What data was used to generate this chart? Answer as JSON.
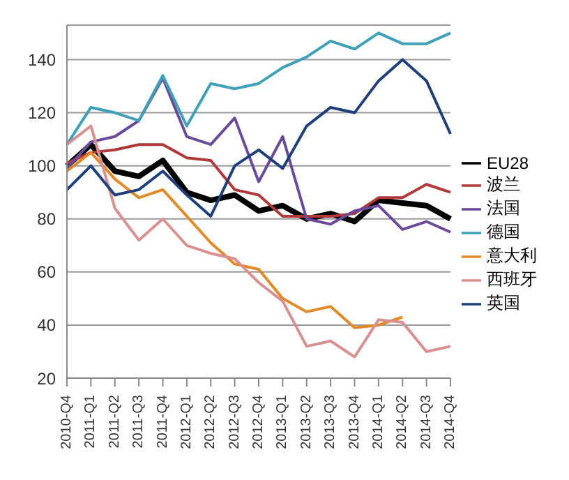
{
  "chart_data": {
    "type": "line",
    "categories": [
      "2010-Q4",
      "2011-Q1",
      "2011-Q2",
      "2011-Q3",
      "2011-Q4",
      "2012-Q1",
      "2012-Q2",
      "2012-Q3",
      "2012-Q4",
      "2013-Q1",
      "2013-Q2",
      "2013-Q3",
      "2013-Q4",
      "2014-Q1",
      "2014-Q2",
      "2014-Q3",
      "2014-Q4"
    ],
    "series": [
      {
        "name": "EU28",
        "color": "#000000",
        "values": [
          100,
          108,
          98,
          96,
          102,
          90,
          87,
          89,
          83,
          85,
          80,
          82,
          79,
          87,
          86,
          85,
          80
        ]
      },
      {
        "name": "波兰",
        "color": "#b03a3a",
        "values": [
          101,
          105,
          106,
          108,
          108,
          103,
          102,
          91,
          89,
          81,
          81,
          81,
          82,
          88,
          88,
          93,
          90
        ]
      },
      {
        "name": "法国",
        "color": "#6a4a9a",
        "values": [
          99,
          109,
          111,
          117,
          133,
          111,
          108,
          118,
          94,
          111,
          80,
          78,
          83,
          85,
          76,
          79,
          75
        ]
      },
      {
        "name": "德国",
        "color": "#3fa0b8",
        "values": [
          108,
          122,
          120,
          117,
          134,
          115,
          131,
          129,
          131,
          137,
          141,
          147,
          144,
          150,
          146,
          146,
          150
        ]
      },
      {
        "name": "意大利",
        "color": "#e38a28",
        "values": [
          98,
          105,
          95,
          88,
          91,
          81,
          71,
          63,
          61,
          50,
          45,
          47,
          39,
          40,
          43,
          null,
          null
        ]
      },
      {
        "name": "西班牙",
        "color": "#d89090",
        "values": [
          108,
          115,
          84,
          72,
          80,
          70,
          67,
          65,
          56,
          49,
          32,
          34,
          28,
          42,
          41,
          30,
          32
        ]
      },
      {
        "name": "英国",
        "color": "#1f3f7a",
        "values": [
          91,
          100,
          89,
          91,
          98,
          89,
          81,
          100,
          106,
          99,
          115,
          122,
          120,
          132,
          140,
          132,
          112
        ]
      }
    ],
    "ylim": [
      20,
      153
    ],
    "yticks": [
      20,
      40,
      60,
      80,
      100,
      120,
      140
    ],
    "grid": "y",
    "legend": "right",
    "marker": "none",
    "line_style": "solid"
  }
}
